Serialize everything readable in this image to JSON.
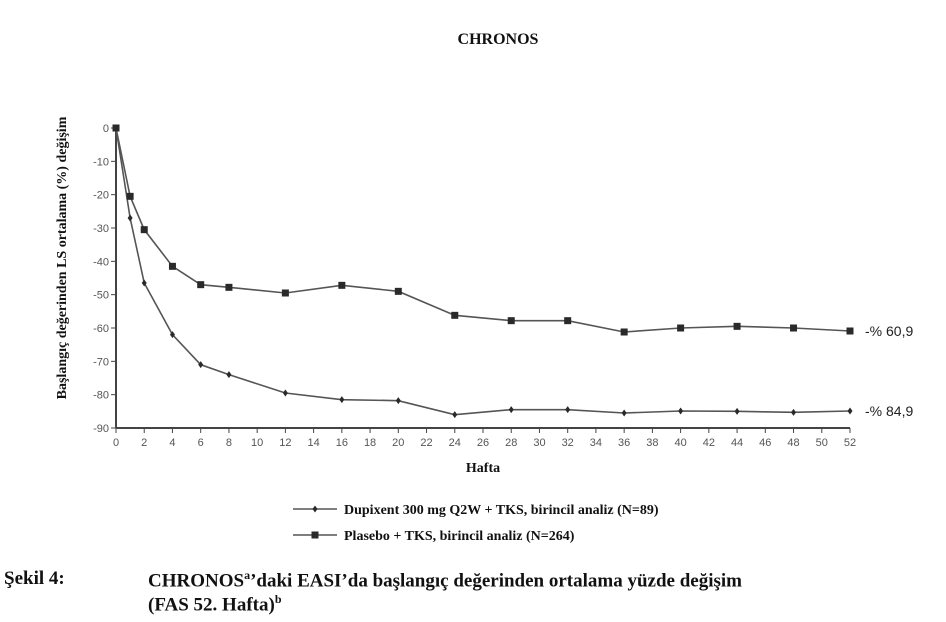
{
  "chart_data": {
    "type": "line",
    "title": "CHRONOS",
    "xlabel": "Hafta",
    "ylabel": "Başlangıç değerinden LS ortalama (%) değişim",
    "xlim": [
      0,
      52
    ],
    "ylim": [
      -90,
      0
    ],
    "x_ticks": [
      0,
      2,
      4,
      6,
      8,
      10,
      12,
      14,
      16,
      18,
      20,
      22,
      24,
      26,
      28,
      30,
      32,
      34,
      36,
      38,
      40,
      42,
      44,
      46,
      48,
      50,
      52
    ],
    "y_ticks": [
      0,
      -10,
      -20,
      -30,
      -40,
      -50,
      -60,
      -70,
      -80,
      -90
    ],
    "grid": false,
    "legend_position": "bottom",
    "series": [
      {
        "name": "Dupixent 300 mg Q2W + TKS, birincil analiz (N=89)",
        "marker": "diamond",
        "x": [
          0,
          1,
          2,
          4,
          6,
          8,
          12,
          16,
          20,
          24,
          28,
          32,
          36,
          40,
          44,
          48,
          52
        ],
        "values": [
          0,
          -27,
          -46.5,
          -62,
          -71,
          -74,
          -79.5,
          -81.5,
          -81.8,
          -86,
          -84.5,
          -84.5,
          -85.5,
          -84.9,
          -85,
          -85.3,
          -84.9
        ],
        "end_label": "-% 84,9"
      },
      {
        "name": "Plasebo + TKS, birincil analiz (N=264)",
        "marker": "square",
        "x": [
          0,
          1,
          2,
          4,
          6,
          8,
          12,
          16,
          20,
          24,
          28,
          32,
          36,
          40,
          44,
          48,
          52
        ],
        "values": [
          0,
          -20.5,
          -30.5,
          -41.5,
          -47,
          -47.8,
          -49.5,
          -47.2,
          -49,
          -56.2,
          -57.8,
          -57.8,
          -61.2,
          -60,
          -59.5,
          -60,
          -60.9
        ],
        "end_label": "-% 60,9"
      }
    ]
  },
  "caption": {
    "label": "Şekil 4:",
    "line1_a": "CHRONOS",
    "line1_sup": "a",
    "line1_b": "’daki EASI’da başlangıç değerinden ortalama yüzde değişim",
    "line2_a": "(FAS 52. Hafta)",
    "line2_sup": "b"
  }
}
